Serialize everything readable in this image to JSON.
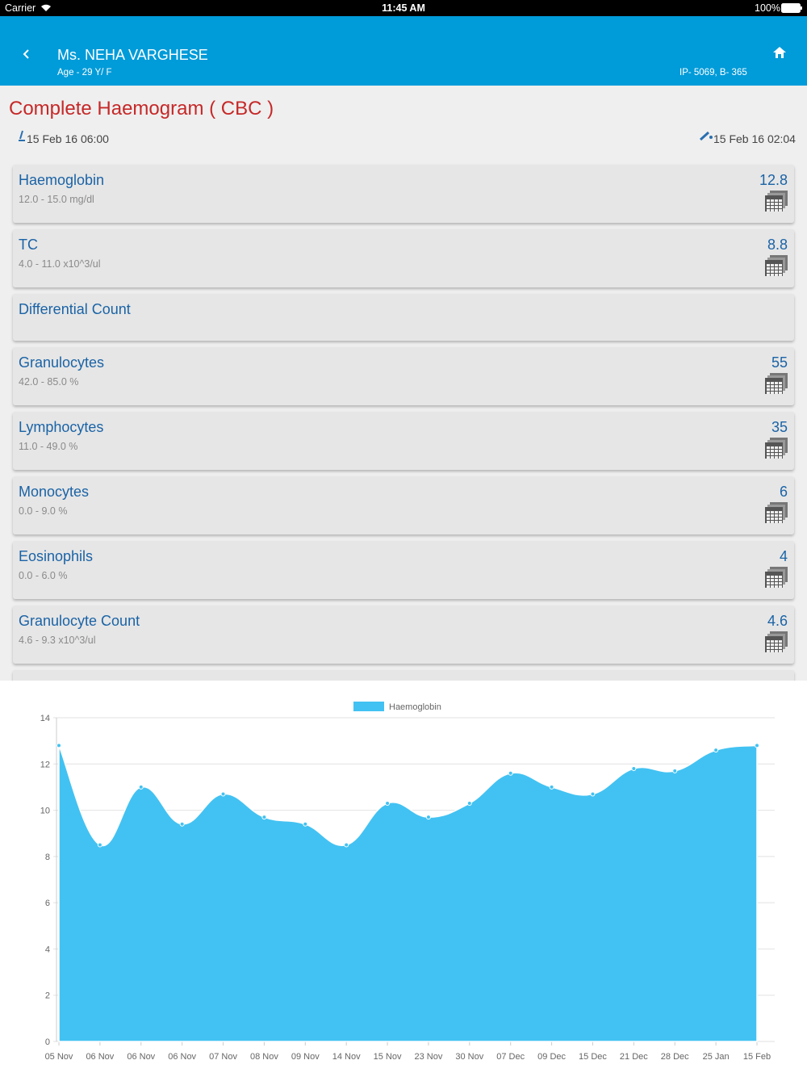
{
  "status_bar": {
    "carrier": "Carrier",
    "time": "11:45 AM",
    "battery": "100%"
  },
  "header": {
    "patient_name": "Ms. NEHA VARGHESE",
    "age": "Age - 29 Y/ F",
    "ip": "IP- 5069, B- 365"
  },
  "report": {
    "title": "Complete Haemogram ( CBC )",
    "collected": "15 Feb 16 06:00",
    "reported": "15 Feb 16 02:04"
  },
  "tests": [
    {
      "name": "Haemoglobin",
      "range": "12.0 - 15.0 mg/dl",
      "value": "12.8"
    },
    {
      "name": "TC",
      "range": "4.0 - 11.0 x10^3/ul",
      "value": "8.8"
    },
    {
      "name": "Differential Count"
    },
    {
      "name": "Granulocytes",
      "range": "42.0 - 85.0 %",
      "value": "55"
    },
    {
      "name": "Lymphocytes",
      "range": "11.0 - 49.0 %",
      "value": "35"
    },
    {
      "name": "Monocytes",
      "range": "0.0 - 9.0 %",
      "value": "6"
    },
    {
      "name": "Eosinophils",
      "range": "0.0 - 6.0 %",
      "value": "4"
    },
    {
      "name": "Granulocyte Count",
      "range": "4.6 - 9.3 x10^3/ul",
      "value": "4.6"
    }
  ],
  "chart_data": {
    "type": "area",
    "categories": [
      "05 Nov",
      "06 Nov",
      "06 Nov",
      "06 Nov",
      "07 Nov",
      "08 Nov",
      "09 Nov",
      "14 Nov",
      "15 Nov",
      "23 Nov",
      "30 Nov",
      "07 Dec",
      "09 Dec",
      "15 Dec",
      "21 Dec",
      "28 Dec",
      "25 Jan",
      "15 Feb"
    ],
    "series": [
      {
        "name": "Haemoglobin",
        "color": "#42c2f2",
        "values": [
          12.8,
          8.5,
          11.0,
          9.4,
          10.7,
          9.7,
          9.4,
          8.5,
          10.3,
          9.7,
          10.3,
          11.6,
          11.0,
          10.7,
          11.8,
          11.7,
          12.6,
          12.8
        ]
      }
    ],
    "ylim": [
      0,
      14
    ],
    "yticks": [
      0,
      2,
      4,
      6,
      8,
      10,
      12,
      14
    ],
    "grid": true,
    "legend": "top"
  }
}
